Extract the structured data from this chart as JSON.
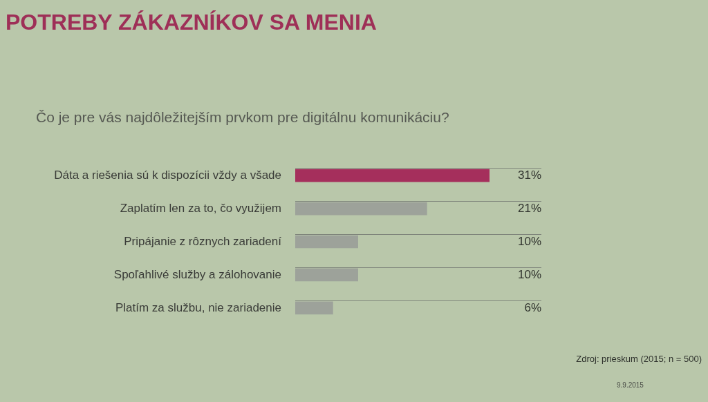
{
  "chart_data": {
    "type": "bar",
    "orientation": "horizontal",
    "title": "POTREBY ZÁKAZNÍKOV SA MENIA",
    "subtitle": "Čo je pre vás najdôležitejším prvkom pre digitálnu komunikáciu?",
    "categories": [
      "Dáta a riešenia sú k dispozícii vždy a všade",
      "Zaplatím len za to, čo využijem",
      "Pripájanie z rôznych zariadení",
      "Spoľahlivé služby a zálohovanie",
      "Platím za službu, nie zariadenie"
    ],
    "values": [
      31,
      21,
      10,
      10,
      6
    ],
    "colors": [
      "#a52f5c",
      "#9da29a",
      "#9da29a",
      "#9da29a",
      "#9da29a"
    ],
    "value_labels": [
      "31%",
      "21%",
      "10%",
      "10%",
      "6%"
    ],
    "grid": "y",
    "tick_labels": "y",
    "annotations": [
      "Zdroj: prieskum (2015; n = 500)",
      "9.9.2015"
    ]
  }
}
